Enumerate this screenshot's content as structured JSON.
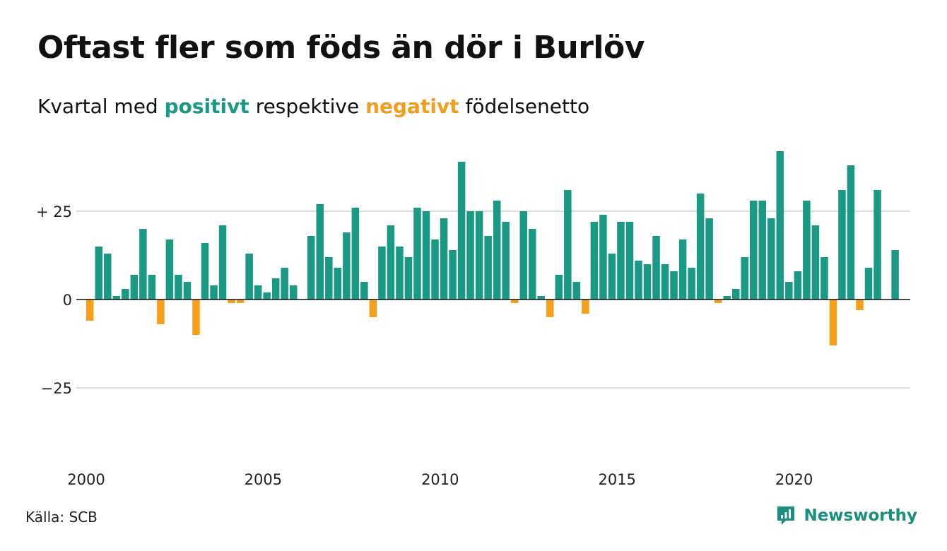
{
  "header": {
    "title": "Oftast fler som föds än dör i Burlöv",
    "subtitle_prefix": "Kvartal med",
    "subtitle_positive": "positivt",
    "subtitle_middle": "respektive",
    "subtitle_negative": "negativt",
    "subtitle_suffix": "födelsenetto"
  },
  "footer": {
    "source": "Källa: SCB",
    "brand": "Newsworthy",
    "brand_icon": "newsworthy-logo-icon"
  },
  "colors": {
    "positive": "#1a9985",
    "negative": "#f6a01a",
    "grid": "#dddddd",
    "zero": "#111111"
  },
  "chart_data": {
    "type": "bar",
    "xlabel": "",
    "ylabel": "",
    "ylim": [
      -40,
      48
    ],
    "y_ticks": [
      {
        "value": 25,
        "label": "+ 25"
      },
      {
        "value": 0,
        "label": "0"
      },
      {
        "value": -25,
        "label": "−25"
      }
    ],
    "x_ticks": [
      "2000",
      "2005",
      "2010",
      "2015",
      "2020"
    ],
    "start_year": 2000,
    "grid": true,
    "legend": "none",
    "categories": [
      "2000 K1",
      "2000 K2",
      "2000 K3",
      "2000 K4",
      "2001 K1",
      "2001 K2",
      "2001 K3",
      "2001 K4",
      "2002 K1",
      "2002 K2",
      "2002 K3",
      "2002 K4",
      "2003 K1",
      "2003 K2",
      "2003 K3",
      "2003 K4",
      "2004 K1",
      "2004 K2",
      "2004 K3",
      "2004 K4",
      "2005 K1",
      "2005 K2",
      "2005 K3",
      "2005 K4",
      "2006 K1",
      "2006 K2",
      "2006 K3",
      "2006 K4",
      "2007 K1",
      "2007 K2",
      "2007 K3",
      "2007 K4",
      "2008 K1",
      "2008 K2",
      "2008 K3",
      "2008 K4",
      "2009 K1",
      "2009 K2",
      "2009 K3",
      "2009 K4",
      "2010 K1",
      "2010 K2",
      "2010 K3",
      "2010 K4",
      "2011 K1",
      "2011 K2",
      "2011 K3",
      "2011 K4",
      "2012 K1",
      "2012 K2",
      "2012 K3",
      "2012 K4",
      "2013 K1",
      "2013 K2",
      "2013 K3",
      "2013 K4",
      "2014 K1",
      "2014 K2",
      "2014 K3",
      "2014 K4",
      "2015 K1",
      "2015 K2",
      "2015 K3",
      "2015 K4",
      "2016 K1",
      "2016 K2",
      "2016 K3",
      "2016 K4",
      "2017 K1",
      "2017 K2",
      "2017 K3",
      "2017 K4",
      "2018 K1",
      "2018 K2",
      "2018 K3",
      "2018 K4",
      "2019 K1",
      "2019 K2",
      "2019 K3",
      "2019 K4",
      "2020 K1",
      "2020 K2",
      "2020 K3",
      "2020 K4",
      "2021 K1",
      "2021 K2",
      "2021 K3",
      "2021 K4",
      "2022 K1",
      "2022 K2",
      "2022 K3",
      "2022 K4",
      "2023 K1"
    ],
    "values": [
      -6,
      15,
      13,
      1,
      3,
      7,
      20,
      7,
      -7,
      17,
      7,
      5,
      -10,
      16,
      4,
      21,
      -1,
      -1,
      13,
      4,
      2,
      6,
      9,
      4,
      0,
      18,
      27,
      12,
      9,
      19,
      26,
      5,
      -5,
      15,
      21,
      15,
      12,
      26,
      25,
      17,
      23,
      14,
      39,
      25,
      25,
      18,
      28,
      22,
      -1,
      25,
      20,
      1,
      -5,
      7,
      31,
      5,
      -4,
      22,
      24,
      13,
      22,
      22,
      11,
      10,
      18,
      10,
      8,
      17,
      9,
      30,
      23,
      -1,
      1,
      3,
      12,
      28,
      28,
      23,
      42,
      5,
      8,
      28,
      21,
      12,
      -13,
      31,
      38,
      -3,
      9,
      31,
      0,
      14,
      0
    ]
  }
}
